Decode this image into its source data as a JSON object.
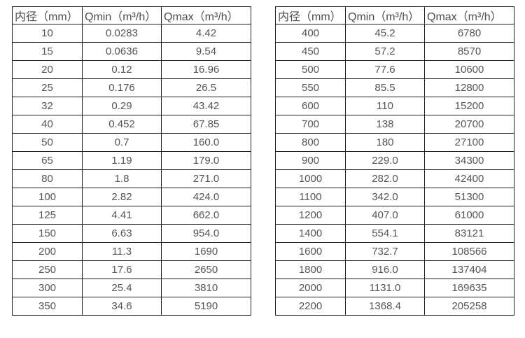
{
  "page": {
    "background_color": "#ffffff",
    "border_color": "#1f1f1f",
    "text_color": "#4d4d4d"
  },
  "tables": [
    {
      "name": "flow-spec-table-small-diameters",
      "headers": [
        "内径（mm）",
        "Qmin（m³/h）",
        "Qmax（m³/h）"
      ],
      "rows": [
        [
          "10",
          "0.0283",
          "4.42"
        ],
        [
          "15",
          "0.0636",
          "9.54"
        ],
        [
          "20",
          "0.12",
          "16.96"
        ],
        [
          "25",
          "0.176",
          "26.5"
        ],
        [
          "32",
          "0.29",
          "43.42"
        ],
        [
          "40",
          "0.452",
          "67.85"
        ],
        [
          "50",
          "0.7",
          "160.0"
        ],
        [
          "65",
          "1.19",
          "179.0"
        ],
        [
          "80",
          "1.8",
          "271.0"
        ],
        [
          "100",
          "2.82",
          "424.0"
        ],
        [
          "125",
          "4.41",
          "662.0"
        ],
        [
          "150",
          "6.63",
          "954.0"
        ],
        [
          "200",
          "11.3",
          "1690"
        ],
        [
          "250",
          "17.6",
          "2650"
        ],
        [
          "300",
          "25.4",
          "3810"
        ],
        [
          "350",
          "34.6",
          "5190"
        ]
      ]
    },
    {
      "name": "flow-spec-table-large-diameters",
      "headers": [
        "内径（mm）",
        "Qmin（m³/h）",
        "Qmax（m³/h）"
      ],
      "rows": [
        [
          "400",
          "45.2",
          "6780"
        ],
        [
          "450",
          "57.2",
          "8570"
        ],
        [
          "500",
          "77.6",
          "10600"
        ],
        [
          "550",
          "85.5",
          "12800"
        ],
        [
          "600",
          "110",
          "15200"
        ],
        [
          "700",
          "138",
          "20700"
        ],
        [
          "800",
          "180",
          "27100"
        ],
        [
          "900",
          "229.0",
          "34300"
        ],
        [
          "1000",
          "282.0",
          "42400"
        ],
        [
          "1100",
          "342.0",
          "51300"
        ],
        [
          "1200",
          "407.0",
          "61000"
        ],
        [
          "1400",
          "554.1",
          "83121"
        ],
        [
          "1600",
          "732.7",
          "108566"
        ],
        [
          "1800",
          "916.0",
          "137404"
        ],
        [
          "2000",
          "1131.0",
          "169635"
        ],
        [
          "2200",
          "1368.4",
          "205258"
        ]
      ]
    }
  ]
}
